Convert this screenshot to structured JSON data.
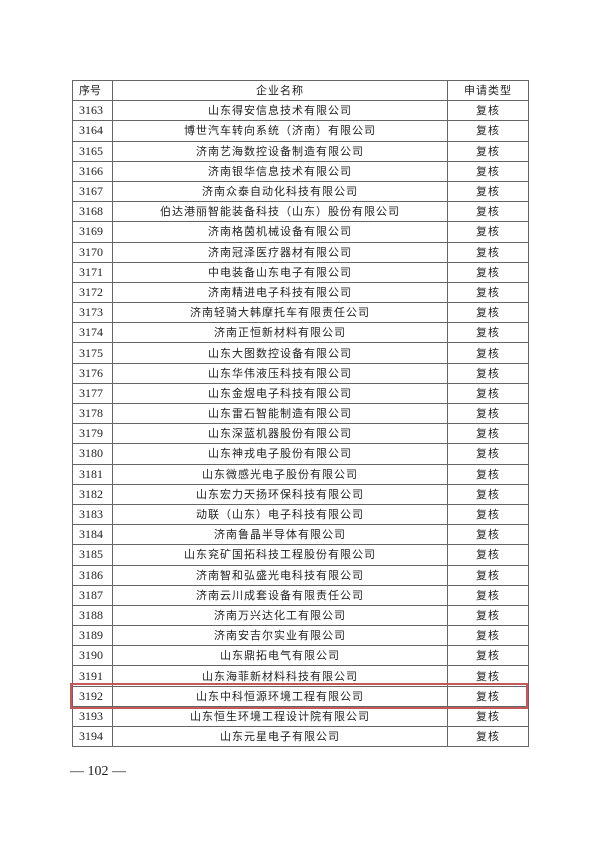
{
  "table": {
    "headers": [
      "序号",
      "企业名称",
      "申请类型"
    ],
    "rows": [
      [
        "3163",
        "山东得安信息技术有限公司",
        "复核"
      ],
      [
        "3164",
        "博世汽车转向系统（济南）有限公司",
        "复核"
      ],
      [
        "3165",
        "济南艺海数控设备制造有限公司",
        "复核"
      ],
      [
        "3166",
        "济南银华信息技术有限公司",
        "复核"
      ],
      [
        "3167",
        "济南众泰自动化科技有限公司",
        "复核"
      ],
      [
        "3168",
        "伯达港丽智能装备科技（山东）股份有限公司",
        "复核"
      ],
      [
        "3169",
        "济南格茵机械设备有限公司",
        "复核"
      ],
      [
        "3170",
        "济南冠泽医疗器材有限公司",
        "复核"
      ],
      [
        "3171",
        "中电装备山东电子有限公司",
        "复核"
      ],
      [
        "3172",
        "济南精进电子科技有限公司",
        "复核"
      ],
      [
        "3173",
        "济南轻骑大韩摩托车有限责任公司",
        "复核"
      ],
      [
        "3174",
        "济南正恒新材料有限公司",
        "复核"
      ],
      [
        "3175",
        "山东大图数控设备有限公司",
        "复核"
      ],
      [
        "3176",
        "山东华伟液压科技有限公司",
        "复核"
      ],
      [
        "3177",
        "山东金煜电子科技有限公司",
        "复核"
      ],
      [
        "3178",
        "山东雷石智能制造有限公司",
        "复核"
      ],
      [
        "3179",
        "山东深蓝机器股份有限公司",
        "复核"
      ],
      [
        "3180",
        "山东神戎电子股份有限公司",
        "复核"
      ],
      [
        "3181",
        "山东微感光电子股份有限公司",
        "复核"
      ],
      [
        "3182",
        "山东宏力天扬环保科技有限公司",
        "复核"
      ],
      [
        "3183",
        "动联（山东）电子科技有限公司",
        "复核"
      ],
      [
        "3184",
        "济南鲁晶半导体有限公司",
        "复核"
      ],
      [
        "3185",
        "山东兖矿国拓科技工程股份有限公司",
        "复核"
      ],
      [
        "3186",
        "济南智和弘盛光电科技有限公司",
        "复核"
      ],
      [
        "3187",
        "济南云川成套设备有限责任公司",
        "复核"
      ],
      [
        "3188",
        "济南万兴达化工有限公司",
        "复核"
      ],
      [
        "3189",
        "济南安吉尔实业有限公司",
        "复核"
      ],
      [
        "3190",
        "山东鼎拓电气有限公司",
        "复核"
      ],
      [
        "3191",
        "山东海菲新材料科技有限公司",
        "复核"
      ],
      [
        "3192",
        "山东中科恒源环境工程有限公司",
        "复核"
      ],
      [
        "3193",
        "山东恒生环境工程设计院有限公司",
        "复核"
      ],
      [
        "3194",
        "山东元星电子有限公司",
        "复核"
      ]
    ],
    "highlighted_row": "3192",
    "highlight_color": "#c4585a"
  },
  "footer": {
    "page_number": "— 102 —"
  }
}
